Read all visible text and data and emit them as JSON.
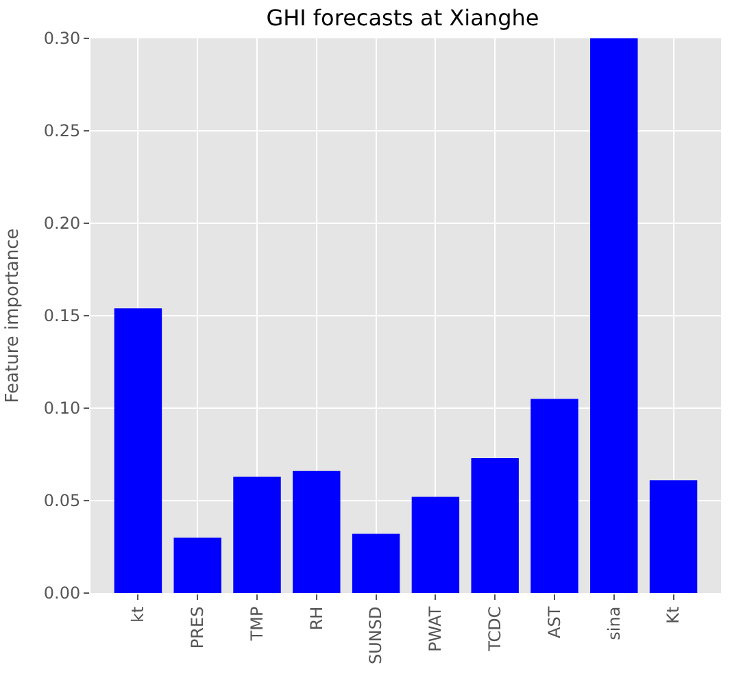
{
  "chart_data": {
    "type": "bar",
    "title": "GHI forecasts at Xianghe",
    "ylabel": "Feature importance",
    "categories": [
      "kt",
      "PRES",
      "TMP",
      "RH",
      "SUNSD",
      "PWAT",
      "TCDC",
      "AST",
      "sina",
      "Kt"
    ],
    "values": [
      0.154,
      0.03,
      0.063,
      0.066,
      0.032,
      0.052,
      0.073,
      0.105,
      0.3,
      0.061
    ],
    "color": "#0000ff",
    "ylim": [
      0,
      0.3
    ],
    "yticks": [
      {
        "value": 0,
        "label": "0.00"
      },
      {
        "value": 0.05,
        "label": "0.05"
      },
      {
        "value": 0.1,
        "label": "0.10"
      },
      {
        "value": 0.15,
        "label": "0.15"
      },
      {
        "value": 0.2,
        "label": "0.20"
      },
      {
        "value": 0.25,
        "label": "0.25"
      },
      {
        "value": 0.3,
        "label": "0.30"
      }
    ],
    "grid": true
  }
}
